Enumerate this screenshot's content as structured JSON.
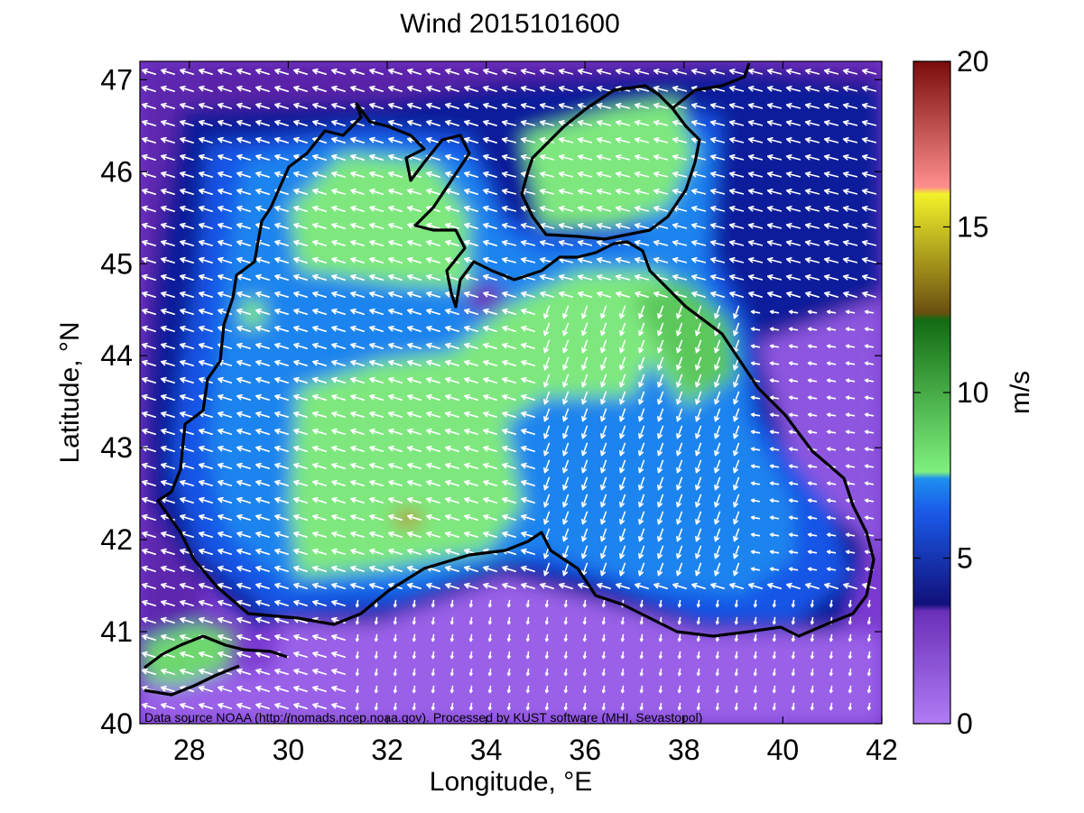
{
  "figure": {
    "title": "Wind 2015101600",
    "xlabel": "Longitude, °E",
    "ylabel": "Latitude, °N",
    "source_note": "Data source NOAA (http://nomads.ncep.noaa.gov). Processed by KUST software (MHI, Sevastopol)"
  },
  "map": {
    "lon_range": [
      27,
      42
    ],
    "lat_range": [
      40,
      47.2
    ],
    "x_ticks": [
      "28",
      "30",
      "32",
      "34",
      "36",
      "38",
      "40",
      "42"
    ],
    "y_ticks": [
      "40",
      "41",
      "42",
      "43",
      "44",
      "45",
      "46",
      "47"
    ],
    "arrow_color": "#ffffff",
    "coastline_color": "#000000"
  },
  "colorbar": {
    "label": "m/s",
    "range": [
      0,
      20
    ],
    "ticks": [
      "0",
      "5",
      "10",
      "15",
      "20"
    ],
    "bands": [
      {
        "from": 0,
        "to": 3.5,
        "color": "#8a4fd8"
      },
      {
        "from": 3.5,
        "to": 7.5,
        "color": "#1f4fe0"
      },
      {
        "from": 7.5,
        "to": 12.5,
        "color": "#2e8f3a"
      },
      {
        "from": 12.5,
        "to": 16.5,
        "color": "#a8a017"
      },
      {
        "from": 16.5,
        "to": 20,
        "color": "#c8302a"
      }
    ]
  }
}
